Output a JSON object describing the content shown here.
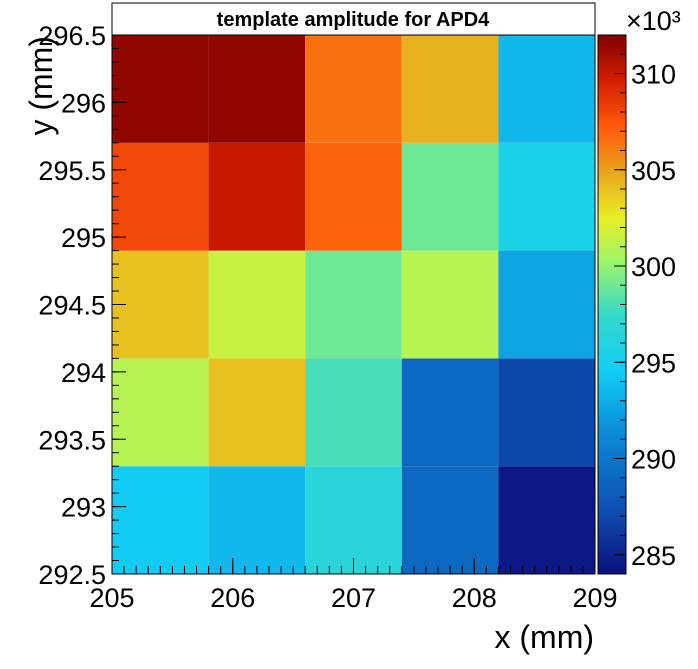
{
  "chart_data": {
    "type": "heatmap",
    "title": "template amplitude for APD4",
    "xlabel": "x (mm)",
    "ylabel": "y (mm)",
    "xlim": [
      205,
      209
    ],
    "ylim": [
      292.5,
      296.5
    ],
    "x_bin_edges": [
      205,
      205.8,
      206.6,
      207.4,
      208.2,
      209
    ],
    "y_bin_edges": [
      292.5,
      293.3,
      294.1,
      294.9,
      295.7,
      296.5
    ],
    "x_ticks": [
      "205",
      "206",
      "207",
      "208",
      "209"
    ],
    "y_ticks": [
      "292.5",
      "293",
      "293.5",
      "294",
      "294.5",
      "295",
      "295.5",
      "296",
      "296.5"
    ],
    "colorbar": {
      "min": 284,
      "max": 312,
      "ticks": [
        "285",
        "290",
        "295",
        "300",
        "305",
        "310"
      ],
      "multiplier": "×10³"
    },
    "values": [
      [
        294.5,
        293.5,
        296.5,
        289.0,
        284.5
      ],
      [
        301.0,
        304.0,
        298.0,
        289.0,
        287.0
      ],
      [
        304.0,
        301.5,
        299.0,
        301.0,
        292.5
      ],
      [
        308.0,
        310.0,
        307.0,
        299.0,
        295.5
      ],
      [
        311.5,
        311.5,
        306.5,
        304.5,
        293.5
      ]
    ]
  }
}
